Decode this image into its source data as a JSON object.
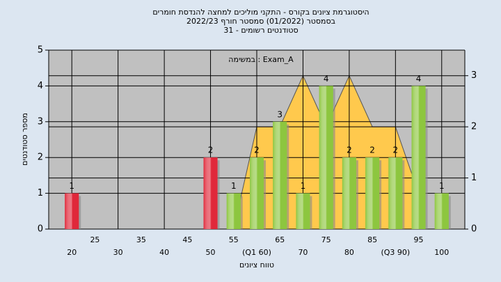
{
  "chart_data": {
    "type": "bar",
    "title": [
      "היסטוגרמת ציונים בקורס - התקני מוליכים למחצה להנדסת חומרים",
      "בסמסטר (01/2022) סמסטר חורף 2022/23",
      "סטודנטים רשומים - 31"
    ],
    "annotation": "במשימה : Exam_A",
    "x_label": "טווח ציונים",
    "y_label": "מספר סטודנטים",
    "categories": [
      "20",
      "25",
      "30",
      "35",
      "40",
      "45",
      "50",
      "55",
      "(Q1 60)",
      "65",
      "70",
      "75",
      "80",
      "85",
      "(Q3 90)",
      "95",
      "100"
    ],
    "values": [
      1,
      0,
      0,
      0,
      0,
      0,
      2,
      1,
      2,
      3,
      1,
      4,
      2,
      2,
      2,
      4,
      1
    ],
    "colors": [
      "#e0283a",
      "#8dc63f",
      "#8dc63f",
      "#8dc63f",
      "#8dc63f",
      "#8dc63f",
      "#e0283a",
      "#8dc63f",
      "#8dc63f",
      "#8dc63f",
      "#8dc63f",
      "#8dc63f",
      "#8dc63f",
      "#8dc63f",
      "#8dc63f",
      "#8dc63f",
      "#8dc63f"
    ],
    "ylim": [
      0,
      5
    ],
    "yticks": [
      0,
      1,
      2,
      3,
      4,
      5
    ],
    "area": {
      "axis": "y2",
      "color": "#ffc94d",
      "values": [
        null,
        null,
        null,
        null,
        null,
        null,
        null,
        0,
        2,
        2,
        3,
        2,
        3,
        2,
        2,
        0.7,
        null
      ]
    },
    "y2lim": [
      0,
      3.5
    ],
    "y2ticks": [
      0,
      1,
      2,
      3
    ],
    "grid": true
  }
}
